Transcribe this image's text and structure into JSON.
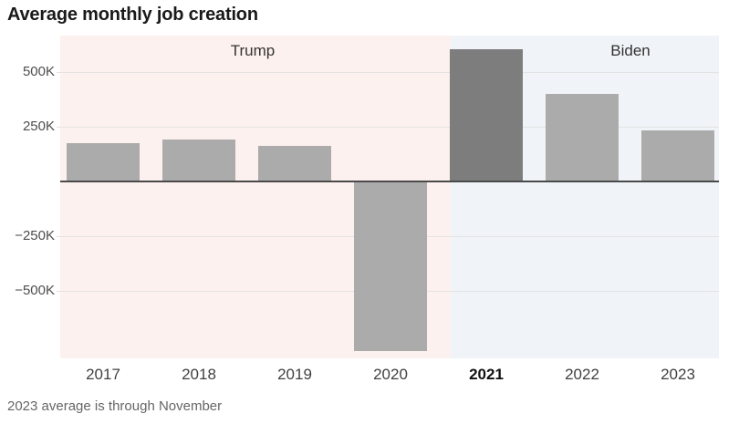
{
  "title": "Average monthly job creation",
  "footnote": "2023 average is through November",
  "regions": [
    {
      "label": "Trump"
    },
    {
      "label": "Biden"
    }
  ],
  "colors": {
    "trump_background": "#fdf1ef",
    "biden_background": "#f0f4f8",
    "bar": "#ababab",
    "bar_highlight": "#7d7d7d",
    "zero_axis_line": "#4a4a4a",
    "gridline": "#e3e3e3"
  },
  "y_axis": {
    "ticks": [
      {
        "label": "500K",
        "value": 500000
      },
      {
        "label": "250K",
        "value": 250000
      },
      {
        "label": "−250K",
        "value": -250000
      },
      {
        "label": "−500K",
        "value": -500000
      }
    ]
  },
  "chart_data": {
    "type": "bar",
    "title": "Average monthly job creation",
    "categories": [
      "2017",
      "2018",
      "2019",
      "2020",
      "2021",
      "2022",
      "2023"
    ],
    "values": [
      176000,
      193000,
      163000,
      -774000,
      606000,
      399000,
      232000
    ],
    "units": "jobs per month",
    "highlight_category": "2021",
    "xlabel": "",
    "ylabel": "",
    "ylim": [
      -810000,
      667000
    ],
    "yticks": [
      500000,
      250000,
      -250000,
      -500000
    ],
    "grid": true,
    "legend": "none",
    "annotations": [
      {
        "text": "Trump",
        "covers_categories": [
          "2017",
          "2018",
          "2019",
          "2020"
        ]
      },
      {
        "text": "Biden",
        "covers_categories": [
          "2021",
          "2022",
          "2023"
        ]
      }
    ],
    "footnote": "2023 average is through November"
  }
}
